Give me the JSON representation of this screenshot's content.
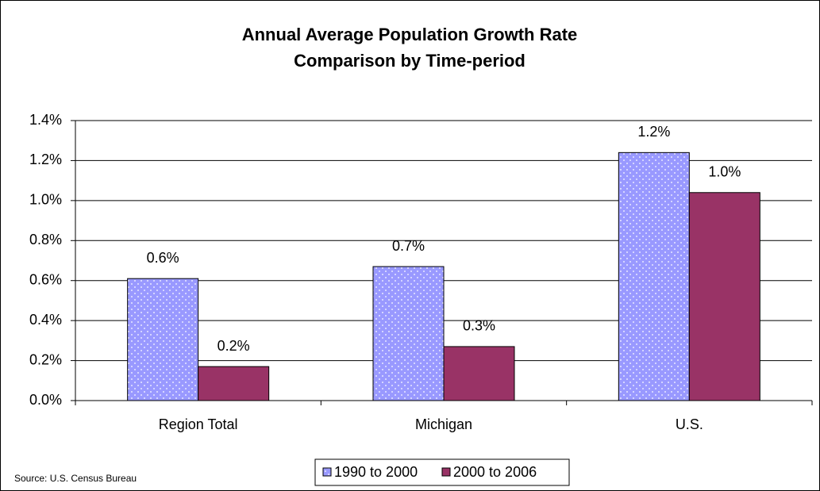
{
  "chart_data": {
    "type": "bar",
    "title": [
      "Annual Average Population Growth Rate",
      "Comparison by Time-period"
    ],
    "categories": [
      "Region Total",
      "Michigan",
      "U.S."
    ],
    "series": [
      {
        "name": "1990 to 2000",
        "color": "#9999ff",
        "values": [
          0.61,
          0.67,
          1.24
        ],
        "value_labels": [
          "0.6%",
          "0.7%",
          "1.2%"
        ]
      },
      {
        "name": "2000 to 2006",
        "color": "#993366",
        "values": [
          0.17,
          0.27,
          1.04
        ],
        "value_labels": [
          "0.2%",
          "0.3%",
          "1.0%"
        ]
      }
    ],
    "ylim": [
      0,
      1.4
    ],
    "yticks": [
      {
        "value": 0,
        "label": "0.0%"
      },
      {
        "value": 0.2,
        "label": "0.2%"
      },
      {
        "value": 0.4,
        "label": "0.4%"
      },
      {
        "value": 0.6,
        "label": "0.6%"
      },
      {
        "value": 0.8,
        "label": "0.8%"
      },
      {
        "value": 1.0,
        "label": "1.0%"
      },
      {
        "value": 1.2,
        "label": "1.2%"
      },
      {
        "value": 1.4,
        "label": "1.4%"
      }
    ],
    "grid": true,
    "legend": "bottom",
    "source": "Source: U.S. Census Bureau"
  }
}
